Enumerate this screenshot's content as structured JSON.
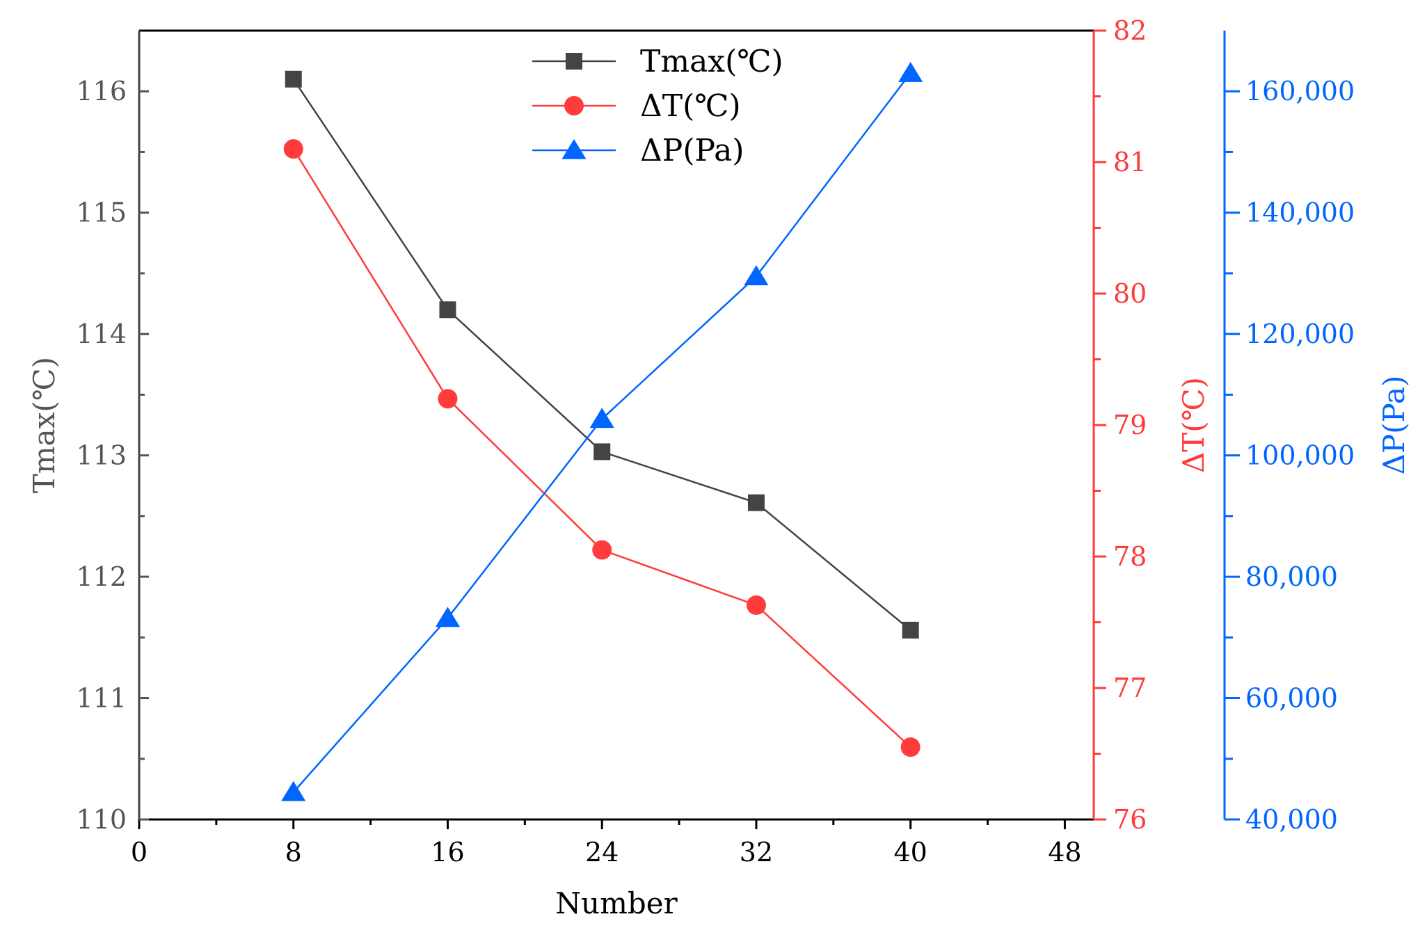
{
  "chart_data": {
    "type": "line",
    "xlabel": "Number",
    "x": [
      8,
      16,
      24,
      32,
      40
    ],
    "xlim": [
      0,
      49.5
    ],
    "xticks": [
      0,
      8,
      16,
      24,
      32,
      40,
      48
    ],
    "xtick_labels": [
      "0",
      "8",
      "16",
      "24",
      "32",
      "40",
      "48"
    ],
    "legend_position": "top-center",
    "axes": {
      "left": {
        "label": "Tmax(℃)",
        "ylim": [
          110,
          116.5
        ],
        "ticks": [
          110,
          111,
          112,
          113,
          114,
          115,
          116
        ],
        "tick_labels": [
          "110",
          "111",
          "112",
          "113",
          "114",
          "115",
          "116"
        ],
        "color": "#555555"
      },
      "right1": {
        "label": "ΔT(℃)",
        "ylim": [
          76,
          82
        ],
        "ticks": [
          76,
          77,
          78,
          79,
          80,
          81,
          82
        ],
        "tick_labels": [
          "76",
          "77",
          "78",
          "79",
          "80",
          "81",
          "82"
        ],
        "color": "#ff3b3b"
      },
      "right2": {
        "label": "ΔP(Pa)",
        "ylim": [
          40000,
          170000
        ],
        "ticks": [
          40000,
          60000,
          80000,
          100000,
          120000,
          140000,
          160000
        ],
        "tick_labels": [
          "40,000",
          "60,000",
          "80,000",
          "100,000",
          "120,000",
          "140,000",
          "160,000"
        ],
        "color": "#0066ff"
      }
    },
    "series": [
      {
        "name": "Tmax(℃)",
        "axis": "left",
        "marker": "square",
        "color": "#444444",
        "values": [
          116.1,
          114.2,
          113.03,
          112.61,
          111.56
        ]
      },
      {
        "name": "ΔT(℃)",
        "axis": "right1",
        "marker": "circle",
        "color": "#ff3b3b",
        "values": [
          81.1,
          79.2,
          78.05,
          77.63,
          76.55
        ]
      },
      {
        "name": "ΔP(Pa)",
        "axis": "right2",
        "marker": "triangle",
        "color": "#0066ff",
        "values": [
          44500,
          73200,
          106000,
          129500,
          163000
        ]
      }
    ]
  }
}
